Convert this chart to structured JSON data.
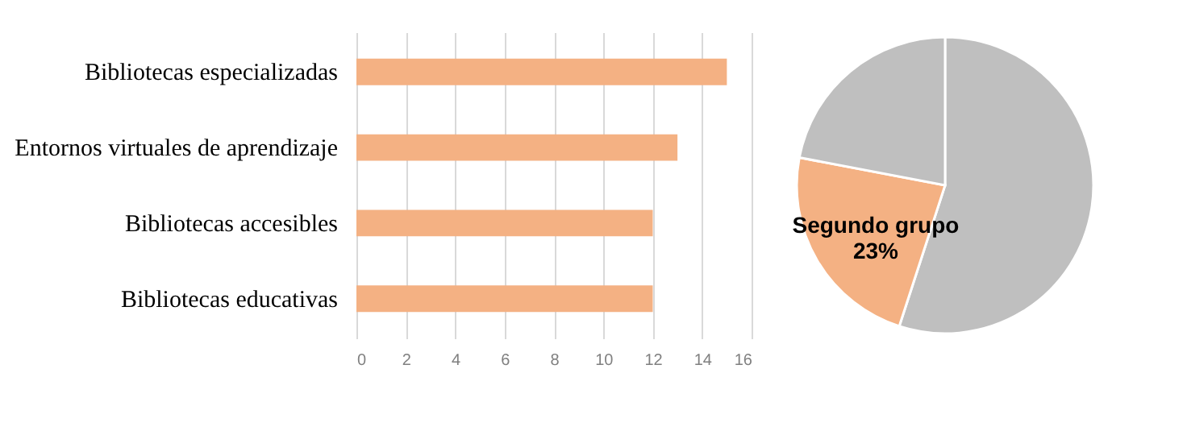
{
  "chart_data": [
    {
      "type": "bar",
      "orientation": "horizontal",
      "categories": [
        "Bibliotecas especializadas",
        "Entornos virtuales de aprendizaje",
        "Bibliotecas accesibles",
        "Bibliotecas educativas"
      ],
      "values": [
        15,
        13,
        12,
        12
      ],
      "color": "#f4b183",
      "xlim": [
        0,
        16
      ],
      "xticks": [
        0,
        2,
        4,
        6,
        8,
        10,
        12,
        14,
        16
      ],
      "grid": "x",
      "legend": false
    },
    {
      "type": "pie",
      "categories": [
        null,
        "Segundo grupo",
        null
      ],
      "values": [
        55,
        23,
        22
      ],
      "colors": [
        "#bfbfbf",
        "#f4b183",
        "#bfbfbf"
      ],
      "value_labels": [
        null,
        "23%",
        null
      ],
      "legend": false
    }
  ]
}
